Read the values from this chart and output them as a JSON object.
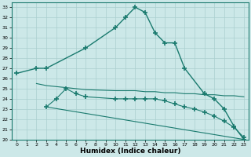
{
  "xlabel": "Humidex (Indice chaleur)",
  "bg_color": "#cce8e8",
  "line_color": "#1a7a6e",
  "grid_color": "#aacfcf",
  "xlim": [
    -0.5,
    23.5
  ],
  "ylim": [
    20,
    33.5
  ],
  "xticks": [
    0,
    1,
    2,
    3,
    4,
    5,
    6,
    7,
    8,
    9,
    10,
    11,
    12,
    13,
    14,
    15,
    16,
    17,
    18,
    19,
    20,
    21,
    22,
    23
  ],
  "yticks": [
    20,
    21,
    22,
    23,
    24,
    25,
    26,
    27,
    28,
    29,
    30,
    31,
    32,
    33
  ],
  "line1_x": [
    0,
    2,
    3,
    7,
    10,
    11,
    12,
    13,
    14,
    15,
    16,
    17,
    19,
    20,
    21,
    22,
    23
  ],
  "line1_y": [
    26.5,
    27,
    27,
    29,
    31,
    32,
    33,
    32.5,
    30.5,
    29.5,
    29.5,
    27,
    24.5,
    24,
    23,
    21.3,
    20
  ],
  "line2_x": [
    2,
    3,
    4,
    5,
    6,
    7,
    10,
    11,
    12,
    13,
    14,
    15,
    16,
    17,
    18,
    19,
    20,
    21,
    22,
    23
  ],
  "line2_y": [
    25.5,
    25.3,
    25.2,
    25.1,
    25.0,
    24.9,
    24.8,
    24.8,
    24.8,
    24.7,
    24.7,
    24.6,
    24.6,
    24.5,
    24.5,
    24.4,
    24.4,
    24.3,
    24.3,
    24.2
  ],
  "line3_x": [
    3,
    4,
    5,
    6,
    7,
    10,
    11,
    12,
    13,
    14,
    15,
    16,
    17,
    18,
    19,
    20,
    21,
    22,
    23
  ],
  "line3_y": [
    23.2,
    24.0,
    25.0,
    24.5,
    24.2,
    24.0,
    24.0,
    24.0,
    24.0,
    24.0,
    23.8,
    23.5,
    23.2,
    23.0,
    22.7,
    22.3,
    21.8,
    21.2,
    20.2
  ],
  "line4_x": [
    3,
    23
  ],
  "line4_y": [
    23.2,
    20.0
  ]
}
